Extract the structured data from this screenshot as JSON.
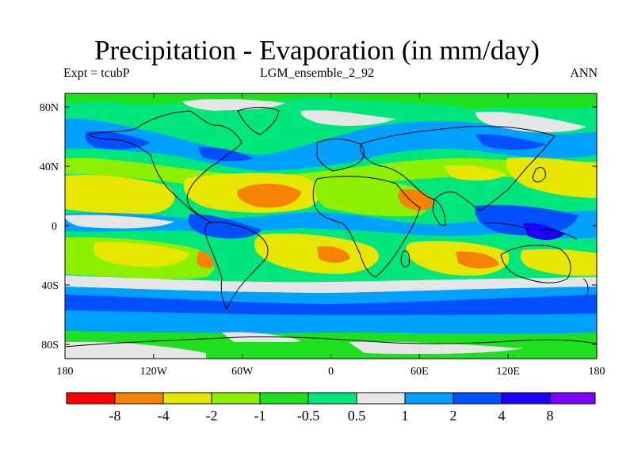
{
  "title": "Precipitation - Evaporation (in mm/day)",
  "subtitle_left": "Expt = tcubP",
  "subtitle_center": "LGM_ensemble_2_92",
  "subtitle_right": "ANN",
  "lat_ticks": [
    "80N",
    "40N",
    "0",
    "40S",
    "80S"
  ],
  "lon_ticks": [
    "180",
    "120W",
    "60W",
    "0",
    "60E",
    "120E",
    "180"
  ],
  "colorbar": {
    "labels": [
      "-8",
      "-4",
      "-2",
      "-1",
      "-0.5",
      "0.5",
      "1",
      "2",
      "4",
      "8"
    ],
    "colors": [
      "#ff0000",
      "#f58200",
      "#e6e600",
      "#8cf000",
      "#1ee01e",
      "#00e67d",
      "#e6e6e6",
      "#00a0ff",
      "#0050ff",
      "#1e00ff",
      "#7d00ff"
    ]
  }
}
